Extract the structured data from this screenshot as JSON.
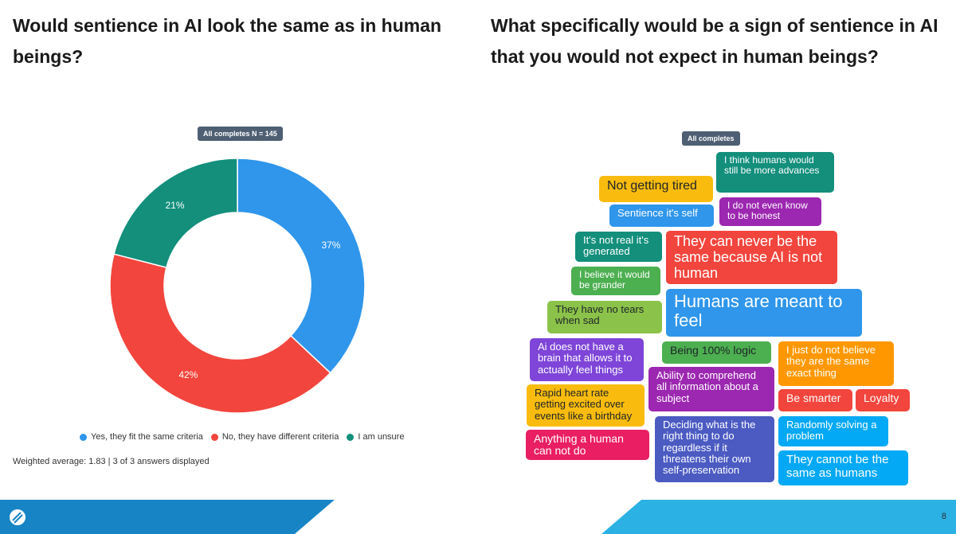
{
  "left": {
    "title": "Would sentience in AI look the same as in human beings?",
    "badge": "All completes N = 145",
    "footnote": "Weighted average: 1.83   |   3 of 3 answers displayed"
  },
  "chart_data": {
    "type": "pie",
    "title": "Would sentience in AI look the same as in human beings?",
    "categories": [
      "Yes, they fit the same criteria",
      "No, they have different criteria",
      "I am unsure"
    ],
    "values": [
      37,
      42,
      21
    ],
    "labels": [
      "37%",
      "42%",
      "21%"
    ],
    "colors": [
      "#2f96eb",
      "#f2453d",
      "#138f7c"
    ],
    "donut": true,
    "legend": "bottom"
  },
  "right": {
    "title": "What specifically would be a sign of sentience in AI that you would not expect in human beings?",
    "badge": "All completes",
    "tags": [
      {
        "text": "I think humans would still be more advances",
        "color": "#138f7c"
      },
      {
        "text": "Not getting tired",
        "color": "#f9bc0e"
      },
      {
        "text": "Sentience it's self",
        "color": "#2f96eb"
      },
      {
        "text": "I do not even know to be honest",
        "color": "#9c27b0"
      },
      {
        "text": "It's not real it's generated",
        "color": "#138f7c"
      },
      {
        "text": "They can never be the same because AI is not human",
        "color": "#f2453d"
      },
      {
        "text": "I believe it would be grander",
        "color": "#4caf50"
      },
      {
        "text": "They have no tears when sad",
        "color": "#8bc34a"
      },
      {
        "text": "Humans are meant to feel",
        "color": "#2f96eb"
      },
      {
        "text": "Ai does not have a brain that allows it to actually feel things",
        "color": "#7e45d8"
      },
      {
        "text": "Being 100% logic",
        "color": "#4caf50"
      },
      {
        "text": "I just do not believe they are the same exact thing",
        "color": "#ff9800"
      },
      {
        "text": "Ability to comprehend all information about a subject",
        "color": "#9c27b0"
      },
      {
        "text": "Rapid heart rate getting excited over events like a birthday",
        "color": "#f9bc0e"
      },
      {
        "text": "Be smarter",
        "color": "#f2453d"
      },
      {
        "text": "Loyalty",
        "color": "#f2453d"
      },
      {
        "text": "Deciding what is the right thing to do regardless if it threatens their own self-preservation",
        "color": "#4b5bc2"
      },
      {
        "text": "Randomly solving a problem",
        "color": "#03a9f4"
      },
      {
        "text": "Anything a human can not do",
        "color": "#e91e63"
      },
      {
        "text": "They cannot be the same as humans",
        "color": "#03a9f4"
      }
    ]
  },
  "footer": {
    "page_number": "8",
    "logo_icon": "brand-logo-icon"
  }
}
